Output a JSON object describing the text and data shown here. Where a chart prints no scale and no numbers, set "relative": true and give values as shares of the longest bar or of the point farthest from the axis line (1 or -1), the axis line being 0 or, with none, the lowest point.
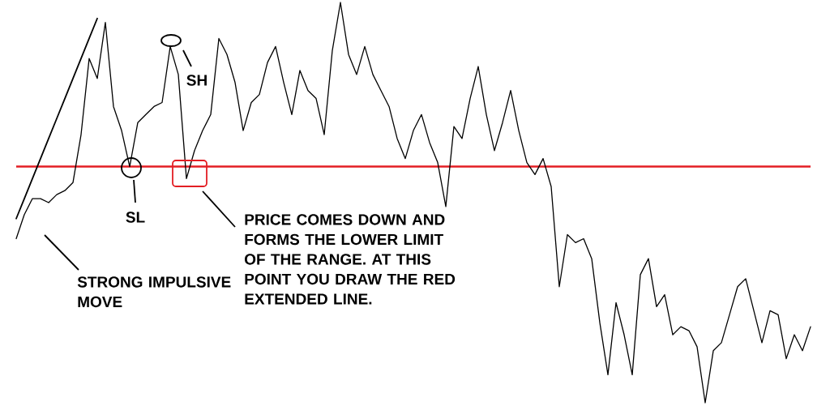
{
  "chart_data": {
    "type": "line",
    "relative": true,
    "categories": [
      null,
      null,
      null,
      null,
      null,
      null,
      null,
      null,
      null,
      null,
      null,
      null,
      null,
      null,
      null,
      null,
      null,
      null,
      null,
      null,
      null,
      null,
      null,
      null,
      null,
      null,
      null,
      null,
      null,
      null,
      null,
      null,
      null,
      null,
      null,
      null,
      null,
      null,
      null,
      null,
      null,
      null,
      null,
      null,
      null,
      null,
      null,
      null,
      null,
      null,
      null,
      null,
      null,
      null,
      null,
      null,
      null,
      null,
      null,
      null,
      null,
      null,
      null,
      null,
      null,
      null,
      null,
      null,
      null,
      null,
      null,
      null,
      null,
      null,
      null,
      null,
      null,
      null,
      null,
      null,
      null,
      null,
      null,
      null,
      null,
      null,
      null,
      null,
      null,
      null,
      null,
      null,
      null,
      null,
      null,
      null,
      null,
      null,
      null
    ],
    "series": [
      {
        "color": "#000000",
        "values": [
          0.41,
          0.47,
          0.51,
          0.51,
          0.5,
          0.52,
          0.53,
          0.55,
          0.67,
          0.86,
          0.81,
          0.95,
          0.74,
          0.68,
          0.59,
          0.7,
          0.72,
          0.74,
          0.75,
          0.89,
          0.82,
          0.56,
          0.63,
          0.68,
          0.72,
          0.91,
          0.87,
          0.8,
          0.68,
          0.75,
          0.77,
          0.85,
          0.89,
          0.8,
          0.72,
          0.83,
          0.78,
          0.76,
          0.67,
          0.88,
          1.0,
          0.87,
          0.82,
          0.89,
          0.82,
          0.78,
          0.74,
          0.66,
          0.61,
          0.68,
          0.72,
          0.65,
          0.6,
          0.49,
          0.69,
          0.66,
          0.76,
          0.84,
          0.72,
          0.63,
          0.7,
          0.78,
          0.68,
          0.6,
          0.57,
          0.61,
          0.54,
          0.29,
          0.42,
          0.4,
          0.41,
          0.36,
          0.2,
          0.07,
          0.25,
          0.17,
          0.07,
          0.32,
          0.36,
          0.24,
          0.27,
          0.17,
          0.19,
          0.18,
          0.14,
          0,
          0.13,
          0.15,
          0.22,
          0.29,
          0.31,
          0.23,
          0.15,
          0.23,
          0.22,
          0.11,
          0.17,
          0.13,
          0.19
        ]
      },
      {
        "type": "line",
        "color": "#000000",
        "values": [
          0.46,
          0.51,
          0.56,
          0.61,
          0.66,
          0.71,
          0.76,
          0.81,
          0.86,
          0.91,
          0.96,
          null,
          null,
          null,
          null,
          null,
          null,
          null,
          null,
          null,
          null,
          null,
          null,
          null,
          null,
          null,
          null,
          null,
          null,
          null,
          null,
          null,
          null,
          null,
          null,
          null,
          null,
          null,
          null,
          null,
          null,
          null,
          null,
          null,
          null,
          null,
          null,
          null,
          null,
          null,
          null,
          null,
          null,
          null,
          null,
          null,
          null,
          null,
          null,
          null,
          null,
          null,
          null,
          null,
          null,
          null,
          null,
          null,
          null,
          null,
          null,
          null,
          null,
          null,
          null,
          null,
          null,
          null,
          null,
          null,
          null,
          null,
          null,
          null,
          null,
          null,
          null,
          null,
          null,
          null,
          null,
          null,
          null,
          null,
          null,
          null,
          null,
          null,
          null
        ]
      }
    ],
    "ref_lines": [
      {
        "axis": "y",
        "value": 0.59,
        "color": "#e31e24"
      }
    ],
    "annotations": [
      "SH",
      "SL",
      "STRONG IMPULSIVE MOVE",
      "PRICE COMES DOWN AND FORMS THE LOWER LIMIT OF THE RANGE. AT THIS POINT YOU DRAW THE RED EXTENDED LINE."
    ]
  }
}
